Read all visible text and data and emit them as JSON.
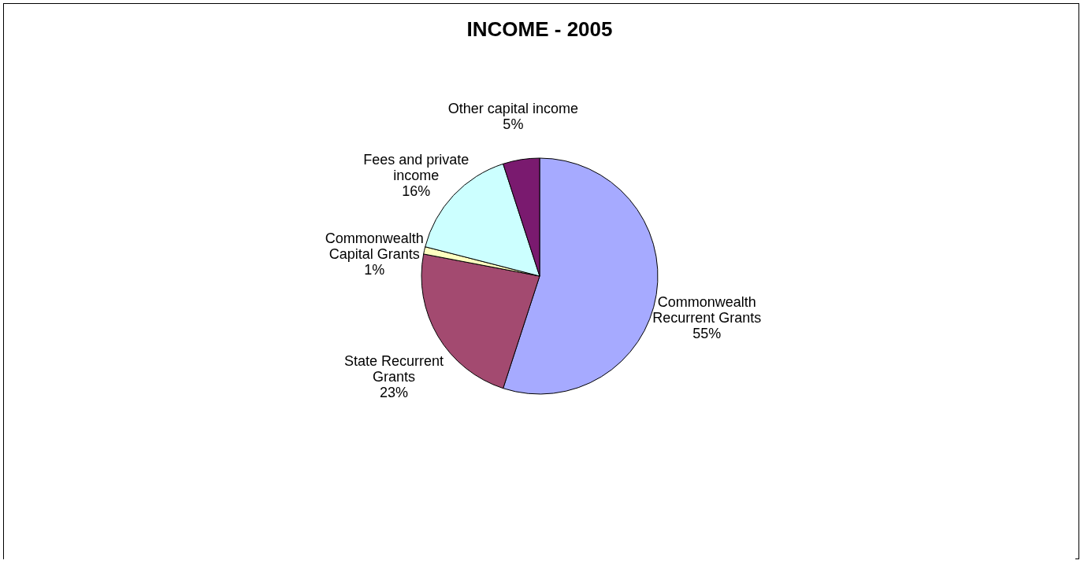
{
  "chart_data": {
    "type": "pie",
    "title": "INCOME - 2005",
    "categories": [
      "Commonwealth Recurrent Grants",
      "State Recurrent Grants",
      "Commonwealth Capital Grants",
      "Fees and private income",
      "Other capital income"
    ],
    "values": [
      55,
      23,
      1,
      16,
      5
    ],
    "value_labels": [
      "55%",
      "23%",
      "1%",
      "16%",
      "5%"
    ],
    "colors": [
      "#a6aaff",
      "#a34a70",
      "#ffffc0",
      "#ccffff",
      "#7a1a6f"
    ]
  }
}
